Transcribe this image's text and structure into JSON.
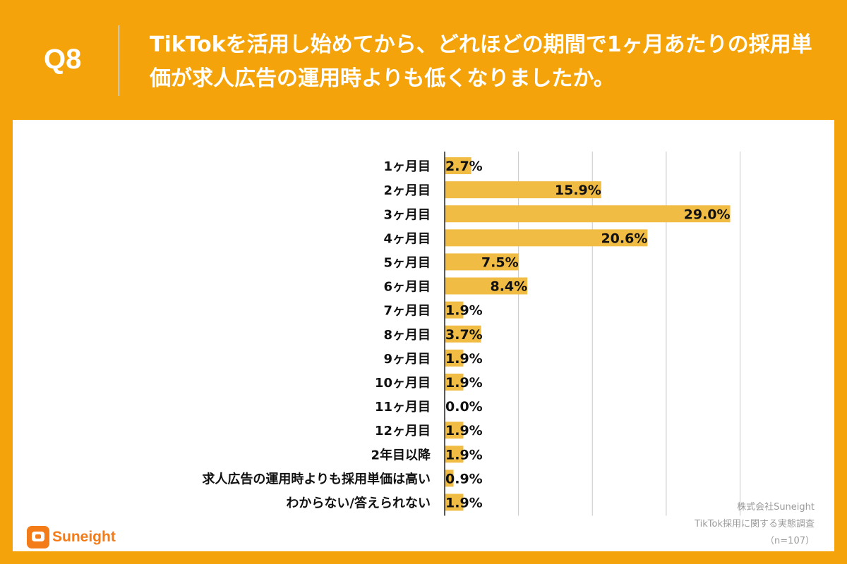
{
  "header": {
    "question_number": "Q8",
    "question_text": "TikTokを活用し始めてから、どれほどの期間で1ヶ月あたりの採用単価が求人広告の運用時よりも低くなりましたか。"
  },
  "colors": {
    "background": "#F4A40A",
    "bar": "#F0BC43",
    "grid": "#c8c8c8",
    "axis": "#222222"
  },
  "chart_data": {
    "type": "bar",
    "orientation": "horizontal",
    "categories": [
      "1ヶ月目",
      "2ヶ月目",
      "3ヶ月目",
      "4ヶ月目",
      "5ヶ月目",
      "6ヶ月目",
      "7ヶ月目",
      "8ヶ月目",
      "9ヶ月目",
      "10ヶ月目",
      "11ヶ月目",
      "12ヶ月目",
      "2年目以降",
      "求人広告の運用時よりも採用単価は高い",
      "わからない/答えられない"
    ],
    "values": [
      2.7,
      15.9,
      29.0,
      20.6,
      7.5,
      8.4,
      1.9,
      3.7,
      1.9,
      1.9,
      0.0,
      1.9,
      1.9,
      0.9,
      1.9
    ],
    "value_labels": [
      "2.7%",
      "15.9%",
      "29.0%",
      "20.6%",
      "7.5%",
      "8.4%",
      "1.9%",
      "3.7%",
      "1.9%",
      "1.9%",
      "0.0%",
      "1.9%",
      "1.9%",
      "0.9%",
      "1.9%"
    ],
    "unit": "%",
    "xlim": [
      0,
      30
    ],
    "grid": true,
    "xlabel": "",
    "ylabel": ""
  },
  "logo": {
    "text": "Suneight"
  },
  "source": {
    "line1": "株式会社Suneight",
    "line2": "TikTok採用に関する実態調査",
    "line3": "（n=107）"
  }
}
